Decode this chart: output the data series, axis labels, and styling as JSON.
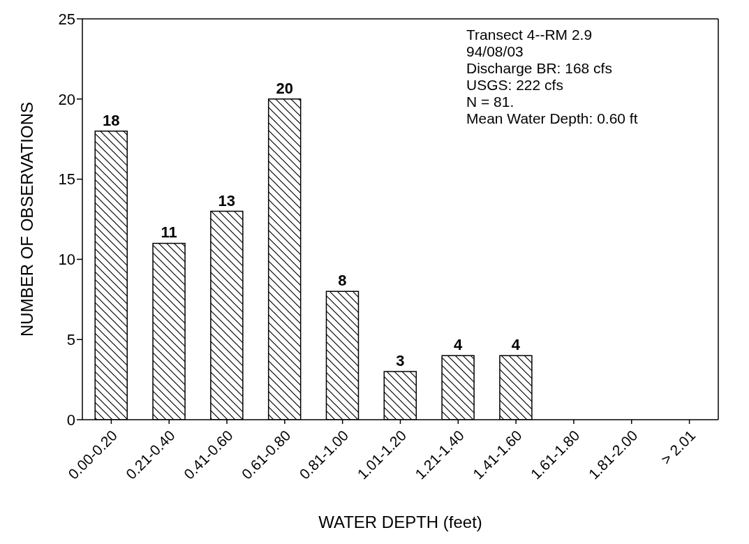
{
  "chart_data": {
    "type": "bar",
    "xlabel": "WATER DEPTH (feet)",
    "ylabel": "NUMBER OF OBSERVATIONS",
    "categories": [
      "0.00-0.20",
      "0.21-0.40",
      "0.41-0.60",
      "0.61-0.80",
      "0.81-1.00",
      "1.01-1.20",
      "1.21-1.40",
      "1.41-1.60",
      "1.61-1.80",
      "1.81-2.00",
      "> 2.01"
    ],
    "values": [
      18,
      11,
      13,
      20,
      8,
      3,
      4,
      4,
      0,
      0,
      0
    ],
    "value_labels": [
      "18",
      "11",
      "13",
      "20",
      "8",
      "3",
      "4",
      "4",
      null,
      null,
      null
    ],
    "color": "#000000",
    "ylim": [
      0,
      25
    ],
    "yticks": [
      0,
      5,
      10,
      15,
      20,
      25
    ],
    "grid": false,
    "legend": false,
    "annotations": [
      "Transect 4--RM 2.9",
      "94/08/03",
      "Discharge BR: 168 cfs",
      "USGS: 222 cfs",
      "N = 81.",
      "Mean Water Depth: 0.60 ft"
    ]
  }
}
